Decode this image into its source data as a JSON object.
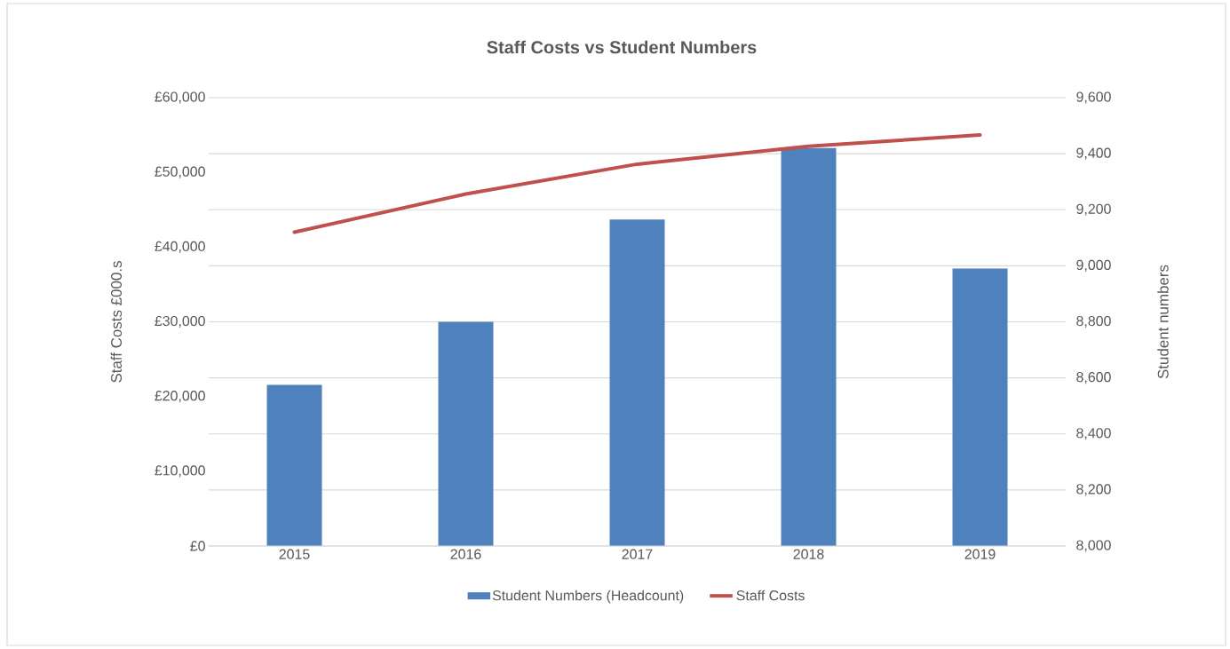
{
  "chart_data": {
    "type": "line",
    "title": "Staff Costs vs Student Numbers",
    "categories": [
      "2015",
      "2016",
      "2017",
      "2018",
      "2019"
    ],
    "series": [
      {
        "name": "Student Numbers (Headcount)",
        "type": "bar",
        "axis": "y2",
        "color": "#4f81bd",
        "values": [
          8575,
          8800,
          9165,
          9420,
          8990
        ]
      },
      {
        "name": "Staff Costs",
        "color": "#c0504d",
        "values": [
          42000,
          47100,
          51100,
          53500,
          55000
        ]
      }
    ],
    "ylabel": "Staff Costs £000.s",
    "y2label": "Student numbers",
    "ylim": [
      0,
      60000
    ],
    "yticks": [
      {
        "value": 0,
        "label": "£0"
      },
      {
        "value": 10000,
        "label": "£10,000"
      },
      {
        "value": 20000,
        "label": "£20,000"
      },
      {
        "value": 30000,
        "label": "£30,000"
      },
      {
        "value": 40000,
        "label": "£40,000"
      },
      {
        "value": 50000,
        "label": "£50,000"
      },
      {
        "value": 60000,
        "label": "£60,000"
      }
    ],
    "y2lim": [
      8000,
      9600
    ],
    "y2ticks": [
      {
        "value": 8000,
        "label": "8,000"
      },
      {
        "value": 8200,
        "label": "8,200"
      },
      {
        "value": 8400,
        "label": "8,400"
      },
      {
        "value": 8600,
        "label": "8,600"
      },
      {
        "value": 8800,
        "label": "8,800"
      },
      {
        "value": 9000,
        "label": "9,000"
      },
      {
        "value": 9200,
        "label": "9,200"
      },
      {
        "value": 9400,
        "label": "9,400"
      },
      {
        "value": 9600,
        "label": "9,600"
      }
    ],
    "grid": "y",
    "legend": "bottom",
    "marker": "none",
    "line_style": "solid"
  }
}
